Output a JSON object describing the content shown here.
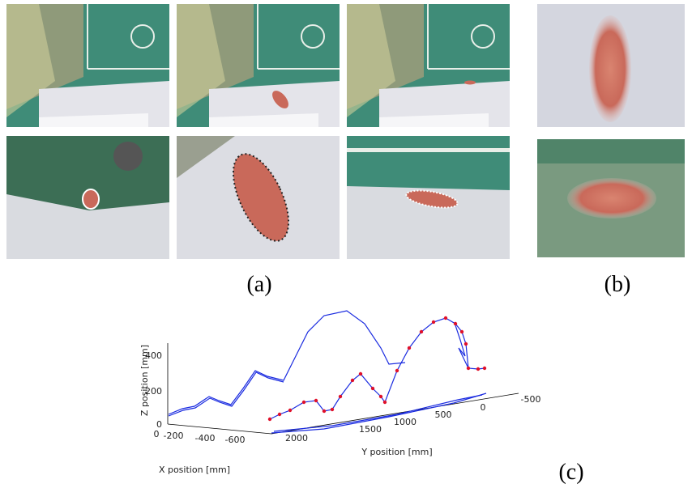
{
  "panels": {
    "a": {
      "label": "(a)"
    },
    "b": {
      "label": "(b)"
    },
    "c": {
      "label": "(c)",
      "z_axis_label": "Z position [mm]",
      "y_axis_label": "Y position [mm]",
      "x_axis_label": "X position [mm]",
      "z_ticks": [
        0,
        200,
        400
      ],
      "y_ticks": [
        2000,
        1500,
        1000,
        500,
        0,
        -500
      ],
      "x_ticks": [
        0,
        -200,
        -400,
        -600
      ]
    }
  }
}
